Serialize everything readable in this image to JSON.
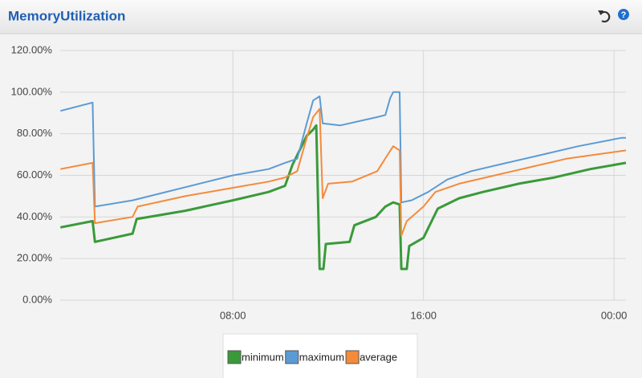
{
  "chart_data": {
    "type": "line",
    "title": "MemoryUtilization",
    "xlim": [
      0.75,
      24.5
    ],
    "xticks": [
      {
        "value": 8,
        "label": "08:00"
      },
      {
        "value": 16,
        "label": "16:00"
      },
      {
        "value": 24,
        "label": "00:00"
      }
    ],
    "ylim": [
      0,
      120
    ],
    "yticks": [
      {
        "value": 0,
        "label": "0.00%"
      },
      {
        "value": 20,
        "label": "20.00%"
      },
      {
        "value": 40,
        "label": "40.00%"
      },
      {
        "value": 60,
        "label": "60.00%"
      },
      {
        "value": 80,
        "label": "80.00%"
      },
      {
        "value": 100,
        "label": "100.00%"
      },
      {
        "value": 120,
        "label": "120.00%"
      }
    ],
    "grid": true,
    "legend": "bottom",
    "series": [
      {
        "name": "minimum",
        "color": "#3a9a3a",
        "x": [
          0.76,
          2.11,
          2.21,
          3.79,
          3.96,
          6,
          8,
          9.5,
          10.19,
          10.5,
          11.1,
          11.37,
          11.5,
          11.64,
          11.8,
          11.9,
          12.9,
          13.1,
          14,
          14.4,
          14.73,
          15,
          15.07,
          15.3,
          15.4,
          16,
          16.6,
          17.5,
          18.5,
          20,
          21.5,
          23,
          24.5
        ],
        "values": [
          35,
          38,
          28,
          32,
          39,
          43,
          48,
          52,
          55,
          65,
          79,
          82,
          84,
          15,
          15,
          27,
          28,
          36,
          40,
          45,
          47,
          46,
          15,
          15,
          26,
          30,
          44,
          49,
          52,
          56,
          59,
          63,
          66
        ]
      },
      {
        "name": "maximum",
        "color": "#5b9bd5",
        "x": [
          0.76,
          2.11,
          2.21,
          3.79,
          4.5,
          8,
          9.5,
          10.19,
          10.7,
          11.1,
          11.37,
          11.64,
          11.77,
          12.5,
          14.06,
          14.4,
          14.6,
          14.73,
          15,
          15.07,
          15.5,
          16.2,
          17,
          18,
          19.5,
          21,
          22.5,
          24.3,
          24.5
        ],
        "values": [
          91,
          95,
          45,
          48,
          50,
          60,
          63,
          66,
          68,
          85,
          96,
          98,
          85,
          84,
          88,
          89,
          97,
          100,
          100,
          47,
          48,
          52,
          58,
          62,
          66,
          70,
          74,
          78,
          78
        ]
      },
      {
        "name": "average",
        "color": "#f58a3a",
        "x": [
          0.76,
          2.11,
          2.21,
          3.79,
          4,
          6,
          8,
          9.5,
          10.19,
          10.7,
          11.1,
          11.37,
          11.64,
          11.77,
          12,
          13,
          14.06,
          14.5,
          14.73,
          15,
          15.07,
          15.3,
          16,
          16.5,
          17.5,
          19,
          20.5,
          22,
          24.5
        ],
        "values": [
          63,
          66,
          37,
          40,
          45,
          50,
          54,
          57,
          59,
          62,
          78,
          88,
          92,
          49,
          56,
          57,
          62,
          70,
          74,
          72,
          31,
          38,
          45,
          52,
          56,
          60,
          64,
          68,
          72
        ]
      }
    ]
  }
}
